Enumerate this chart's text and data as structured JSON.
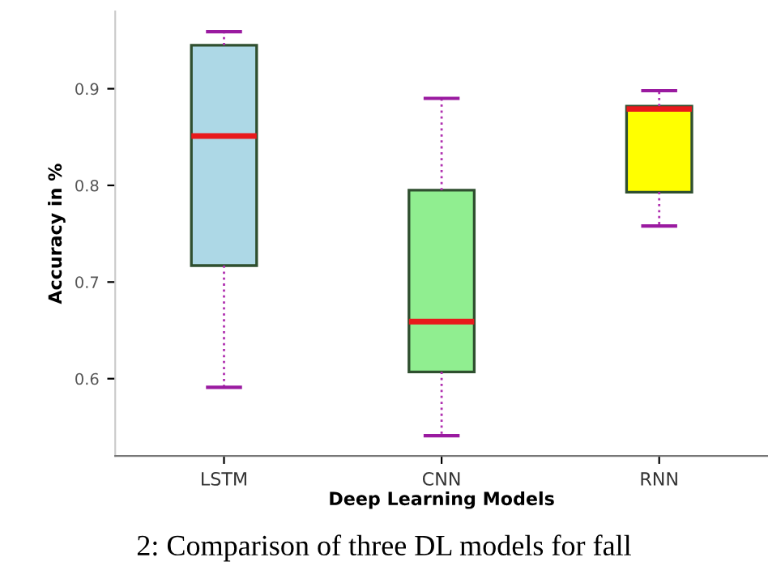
{
  "chart_data": {
    "type": "box",
    "xlabel": "Deep Learning Models",
    "ylabel": "Accuracy in %",
    "categories": [
      "LSTM",
      "CNN",
      "RNN"
    ],
    "colors": [
      "#add8e6",
      "#90ee90",
      "#ffff00"
    ],
    "boxes": [
      {
        "low": 0.591,
        "q1": 0.717,
        "median": 0.851,
        "q3": 0.945,
        "high": 0.959
      },
      {
        "low": 0.541,
        "q1": 0.607,
        "median": 0.659,
        "q3": 0.795,
        "high": 0.89
      },
      {
        "low": 0.758,
        "q1": 0.793,
        "median": 0.879,
        "q3": 0.882,
        "high": 0.898
      }
    ],
    "ylim": [
      0.52,
      0.98
    ],
    "yticks": [
      0.6,
      0.7,
      0.8,
      0.9
    ],
    "grid": false,
    "annotations": [
      "2: Comparison of three DL models for fall"
    ]
  }
}
